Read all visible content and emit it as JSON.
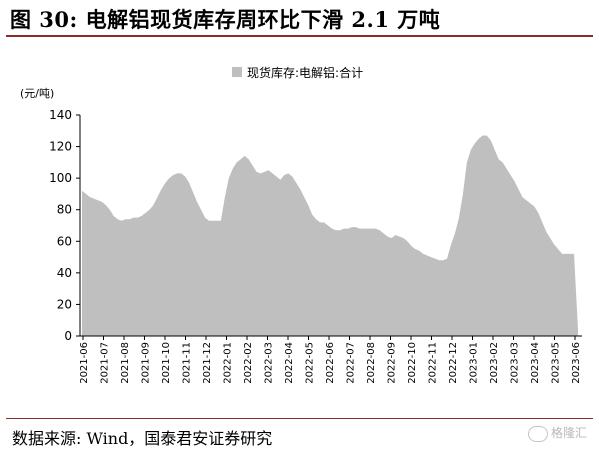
{
  "header": {
    "title": "图 30:  电解铝现货库存周环比下滑 2.1 万吨"
  },
  "footer": {
    "source": "数据来源:  Wind，国泰君安证券研究",
    "watermark": "格隆汇"
  },
  "colors": {
    "area_fill": "#bfbfbf",
    "rule": "#8b2b2b",
    "axis": "#000000"
  },
  "chart_data": {
    "type": "area",
    "ylabel": "(元/吨)",
    "ylim": [
      0,
      140
    ],
    "yticks": [
      0,
      20,
      40,
      60,
      80,
      100,
      120,
      140
    ],
    "xlabels": [
      "2021-06",
      "2021-07",
      "2021-08",
      "2021-09",
      "2021-10",
      "2021-11",
      "2021-12",
      "2022-01",
      "2022-02",
      "2022-03",
      "2022-04",
      "2022-05",
      "2022-06",
      "2022-07",
      "2022-08",
      "2022-09",
      "2022-10",
      "2022-11",
      "2022-12",
      "2023-01",
      "2023-02",
      "2023-03",
      "2023-04",
      "2023-05",
      "2023-06"
    ],
    "legend": "现货库存:电解铝:合计",
    "legend_position": "top-center",
    "grid": false,
    "series": [
      {
        "name": "现货库存:电解铝:合计",
        "values": [
          92,
          90,
          88,
          87,
          86,
          85,
          83,
          80,
          76,
          74,
          73,
          74,
          74,
          75,
          75,
          76,
          78,
          80,
          83,
          88,
          93,
          97,
          100,
          102,
          103,
          103,
          101,
          97,
          91,
          85,
          80,
          75,
          73,
          73,
          73,
          73,
          88,
          100,
          106,
          110,
          112,
          114,
          112,
          108,
          104,
          103,
          104,
          105,
          103,
          101,
          99,
          102,
          103,
          101,
          97,
          93,
          88,
          83,
          77,
          74,
          72,
          72,
          70,
          68,
          67,
          67,
          68,
          68,
          69,
          69,
          68,
          68,
          68,
          68,
          68,
          67,
          65,
          63,
          62,
          64,
          63,
          62,
          60,
          57,
          55,
          54,
          52,
          51,
          50,
          49,
          48,
          48,
          49,
          58,
          65,
          75,
          90,
          110,
          118,
          122,
          125,
          127,
          127,
          124,
          118,
          112,
          110,
          106,
          102,
          98,
          93,
          88,
          86,
          84,
          82,
          78,
          72,
          66,
          62,
          58,
          55,
          52,
          52,
          52,
          52,
          4
        ]
      }
    ]
  }
}
